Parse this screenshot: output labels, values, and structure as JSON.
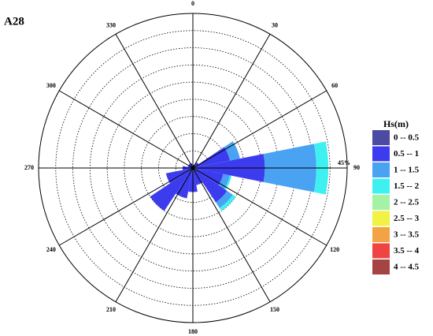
{
  "chart_data": {
    "type": "polar_bar",
    "title": "A28",
    "legend_title": "Hs(m)",
    "x": [
      0,
      22.5,
      45,
      67.5,
      90,
      112.5,
      135,
      157.5,
      180,
      202.5,
      225,
      247.5,
      270,
      292.5,
      315,
      337.5
    ],
    "series": [
      {
        "name": "0 -- 0.5",
        "color": "#4b4ba3",
        "values": [
          0.5,
          0.5,
          1,
          1,
          1,
          1,
          1,
          1,
          1,
          1,
          1,
          1,
          1,
          0.5,
          0.5,
          0.5
        ]
      },
      {
        "name": "0.5 -- 1",
        "color": "#3c3cee",
        "values": [
          0.5,
          0.5,
          1,
          10,
          20,
          8,
          11,
          4,
          6,
          8,
          14,
          7,
          2,
          1,
          1,
          1
        ]
      },
      {
        "name": "1 -- 1.5",
        "color": "#4aa2f2",
        "values": [
          0,
          0,
          0,
          3,
          15,
          2,
          2,
          0,
          0,
          0,
          0,
          0,
          0,
          0,
          0,
          0
        ]
      },
      {
        "name": "1.5 -- 2",
        "color": "#3ff0f0",
        "values": [
          0,
          0,
          0,
          0,
          3.5,
          0.5,
          1,
          0,
          0,
          0,
          0,
          0,
          0,
          0,
          0,
          0
        ]
      },
      {
        "name": "2 -- 2.5",
        "color": "#a4f2a4",
        "values": [
          0,
          0,
          0,
          0,
          0,
          0,
          0,
          0,
          0,
          0,
          0,
          0,
          0,
          0,
          0,
          0
        ]
      },
      {
        "name": "2.5 -- 3",
        "color": "#f2f244",
        "values": [
          0,
          0,
          0,
          0,
          0,
          0,
          0,
          0,
          0,
          0,
          0,
          0,
          0,
          0,
          0,
          0
        ]
      },
      {
        "name": "3 -- 3.5",
        "color": "#f2a444",
        "values": [
          0,
          0,
          0,
          0,
          0,
          0,
          0,
          0,
          0,
          0,
          0,
          0,
          0,
          0,
          0,
          0
        ]
      },
      {
        "name": "3.5 -- 4",
        "color": "#f04444",
        "values": [
          0,
          0,
          0,
          0,
          0,
          0,
          0,
          0,
          0,
          0,
          0,
          0,
          0,
          0,
          0,
          0
        ]
      },
      {
        "name": "4 -- 4.5",
        "color": "#a44444",
        "values": [
          0,
          0,
          0,
          0,
          0,
          0,
          0,
          0,
          0,
          0,
          0,
          0,
          0,
          0,
          0,
          0
        ]
      }
    ],
    "rlim": [
      0,
      45
    ],
    "rticks": [
      5,
      10,
      15,
      20,
      25,
      30,
      35,
      40,
      {
        "value": 45,
        "label": "45%"
      }
    ],
    "thetaticks": [
      0,
      30,
      60,
      90,
      120,
      150,
      180,
      210,
      240,
      270,
      300,
      330
    ]
  }
}
